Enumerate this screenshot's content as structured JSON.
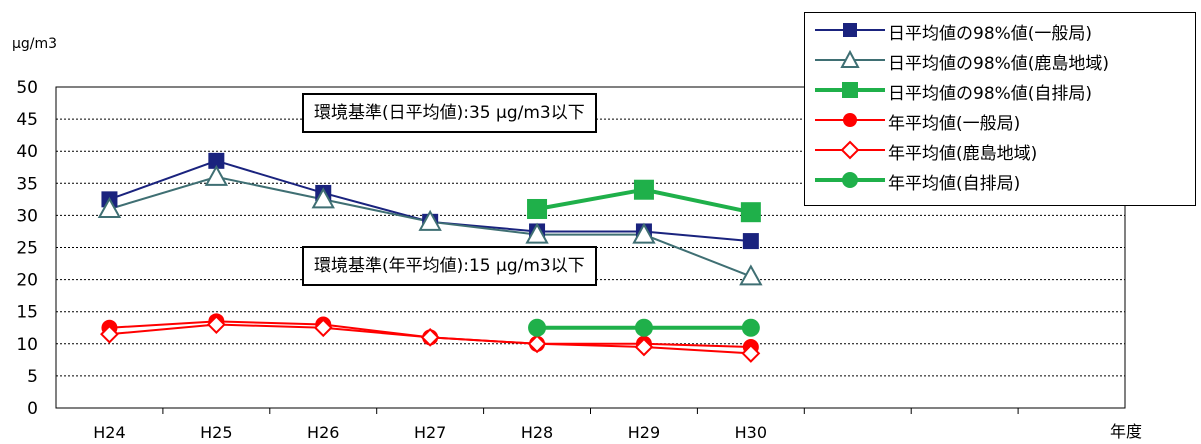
{
  "chart_data": {
    "type": "line",
    "unit_label": "μg/m3",
    "xlabel": "年度",
    "categories": [
      "H24",
      "H25",
      "H26",
      "H27",
      "H28",
      "H29",
      "H30"
    ],
    "ylim": [
      0,
      50
    ],
    "yticks": [
      "0",
      "5",
      "10",
      "15",
      "20",
      "25",
      "30",
      "35",
      "40",
      "45",
      "50"
    ],
    "grid": true,
    "legend_position": "top-right",
    "series": [
      {
        "name": "日平均値の98%値(一般局)",
        "color": "#1a237e",
        "marker": "square",
        "values": [
          32.5,
          38.5,
          33.5,
          29,
          27.5,
          27.5,
          26
        ]
      },
      {
        "name": "日平均値の98%値(鹿島地域)",
        "color": "#3f6f73",
        "marker": "triangle",
        "values": [
          31,
          36,
          32.5,
          29,
          27,
          27,
          20.5
        ]
      },
      {
        "name": "日平均値の98%値(自排局)",
        "color": "#1fb04a",
        "marker": "square",
        "values": [
          null,
          null,
          null,
          null,
          31,
          34,
          30.5
        ]
      },
      {
        "name": "年平均値(一般局)",
        "color": "#ff0000",
        "marker": "circle",
        "values": [
          12.5,
          13.5,
          13,
          11,
          10,
          10,
          9.5
        ]
      },
      {
        "name": "年平均値(鹿島地域)",
        "color": "#ff0000",
        "marker": "diamond",
        "values": [
          11.5,
          13,
          12.5,
          11,
          10,
          9.5,
          8.5
        ]
      },
      {
        "name": "年平均値(自排局)",
        "color": "#1fb04a",
        "marker": "circle",
        "values": [
          null,
          null,
          null,
          null,
          12.5,
          12.5,
          12.5
        ]
      }
    ],
    "annotations": [
      {
        "id": "daily",
        "text": "環境基準(日平均値):35 μg/m3以下"
      },
      {
        "id": "annual",
        "text": "環境基準(年平均値):15 μg/m3以下"
      }
    ]
  }
}
